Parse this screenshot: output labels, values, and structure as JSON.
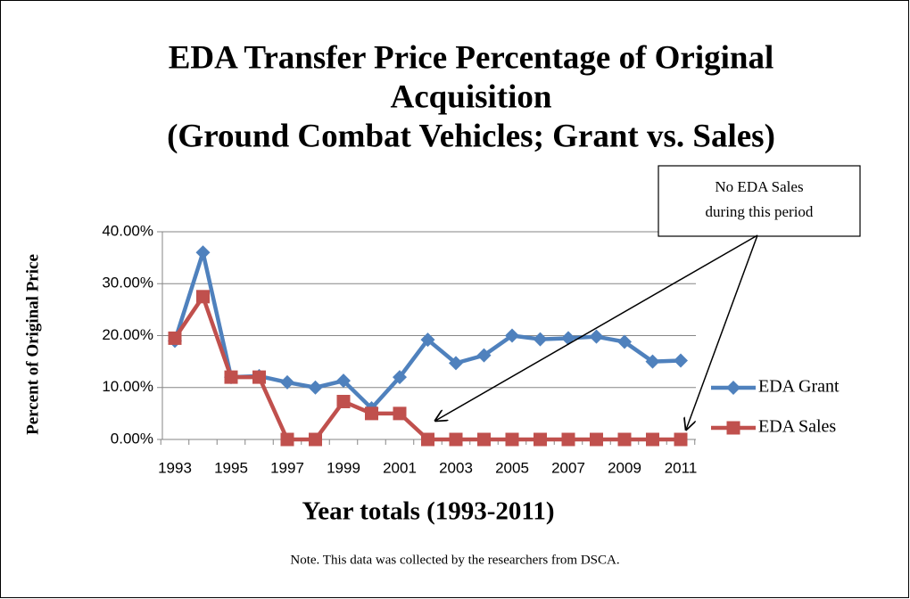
{
  "chart_data": {
    "type": "line",
    "title": [
      "EDA Transfer Price Percentage of Original",
      "Acquisition",
      "(Ground Combat Vehicles; Grant vs. Sales)"
    ],
    "x_label": "Year totals (1993-2011)",
    "y_label": "Percent of Original Price",
    "categories": [
      "1993",
      null,
      "1995",
      null,
      "1997",
      null,
      "1999",
      null,
      "2001",
      null,
      "2003",
      null,
      "2005",
      null,
      "2007",
      null,
      "2009",
      null,
      "2011"
    ],
    "series": [
      {
        "name": "EDA Grant",
        "color": "#4f81bd",
        "marker": "diamond",
        "values": [
          19,
          36,
          12,
          12.2,
          11,
          10,
          11.3,
          6,
          12,
          19.2,
          14.7,
          16.2,
          20,
          19.3,
          19.5,
          19.8,
          18.8,
          15,
          15.2
        ]
      },
      {
        "name": "EDA Sales",
        "color": "#c0504d",
        "marker": "square",
        "values": [
          19.5,
          27.5,
          12,
          12,
          0,
          0,
          7.3,
          5,
          5,
          0,
          0,
          0,
          0,
          0,
          0,
          0,
          0,
          0,
          0
        ]
      }
    ],
    "ylim": [
      0,
      40
    ],
    "yticks": [
      {
        "value": 0,
        "label": "0.00%"
      },
      {
        "value": 10,
        "label": "10.00%"
      },
      {
        "value": 20,
        "label": "20.00%"
      },
      {
        "value": 30,
        "label": "30.00%"
      },
      {
        "value": 40,
        "label": "40.00%"
      }
    ],
    "grid": true,
    "legend": "right",
    "annotation": [
      "No EDA Sales",
      "during this period"
    ],
    "note": "Note. This data was collected by the researchers from DSCA."
  }
}
